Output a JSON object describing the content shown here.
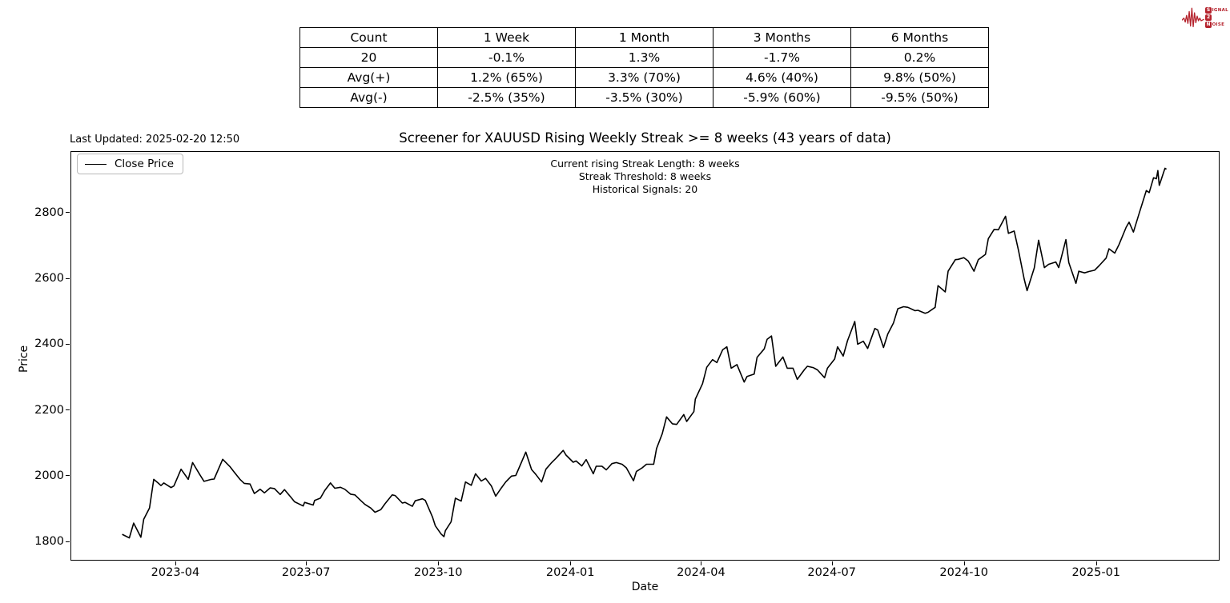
{
  "logo": {
    "signal_initial": "S",
    "signal_rest": "IGNAL",
    "middle": "2",
    "noise_initial": "N",
    "noise_rest": "OISE",
    "color": "#b5232d"
  },
  "last_updated": "Last Updated: 2025-02-20 12:50",
  "title": "Screener for XAUUSD Rising Weekly Streak >= 8 weeks (43 years of data)",
  "annotations": [
    "Current rising Streak Length: 8 weeks",
    "Streak Threshold: 8 weeks",
    "Historical Signals: 20"
  ],
  "legend": {
    "label": "Close Price"
  },
  "stats_table": {
    "headers": [
      "Count",
      "1 Week",
      "1 Month",
      "3 Months",
      "6 Months"
    ],
    "rows": [
      [
        "20",
        "-0.1%",
        "1.3%",
        "-1.7%",
        "0.2%"
      ],
      [
        "Avg(+)",
        "1.2% (65%)",
        "3.3% (70%)",
        "4.6% (40%)",
        "9.8% (50%)"
      ],
      [
        "Avg(-)",
        "-2.5% (35%)",
        "-3.5% (30%)",
        "-5.9% (60%)",
        "-9.5% (50%)"
      ]
    ]
  },
  "chart_data": {
    "type": "line",
    "title": "Screener for XAUUSD Rising Weekly Streak >= 8 weeks (43 years of data)",
    "xlabel": "Date",
    "ylabel": "Price",
    "grid": false,
    "legend_position": "upper left",
    "line_color": "#000000",
    "x_ticks": [
      "2023-04",
      "2023-07",
      "2023-10",
      "2024-01",
      "2024-04",
      "2024-07",
      "2024-10",
      "2025-01"
    ],
    "y_ticks": [
      1800,
      2000,
      2200,
      2400,
      2600,
      2800
    ],
    "x_domain": [
      "2023-01-18",
      "2025-03-28"
    ],
    "y_domain": [
      1742,
      2987
    ],
    "series": [
      {
        "name": "Close Price",
        "points": [
          [
            "2023-02-23",
            1822
          ],
          [
            "2023-02-28",
            1811
          ],
          [
            "2023-03-03",
            1856
          ],
          [
            "2023-03-08",
            1813
          ],
          [
            "2023-03-10",
            1868
          ],
          [
            "2023-03-14",
            1902
          ],
          [
            "2023-03-17",
            1989
          ],
          [
            "2023-03-20",
            1978
          ],
          [
            "2023-03-22",
            1970
          ],
          [
            "2023-03-24",
            1978
          ],
          [
            "2023-03-29",
            1964
          ],
          [
            "2023-03-31",
            1969
          ],
          [
            "2023-04-05",
            2020
          ],
          [
            "2023-04-10",
            1989
          ],
          [
            "2023-04-13",
            2040
          ],
          [
            "2023-04-18",
            2004
          ],
          [
            "2023-04-21",
            1983
          ],
          [
            "2023-04-26",
            1989
          ],
          [
            "2023-04-28",
            1990
          ],
          [
            "2023-05-04",
            2050
          ],
          [
            "2023-05-09",
            2028
          ],
          [
            "2023-05-12",
            2011
          ],
          [
            "2023-05-16",
            1989
          ],
          [
            "2023-05-19",
            1977
          ],
          [
            "2023-05-23",
            1975
          ],
          [
            "2023-05-26",
            1946
          ],
          [
            "2023-05-30",
            1959
          ],
          [
            "2023-06-02",
            1948
          ],
          [
            "2023-06-06",
            1963
          ],
          [
            "2023-06-09",
            1961
          ],
          [
            "2023-06-13",
            1943
          ],
          [
            "2023-06-16",
            1958
          ],
          [
            "2023-06-21",
            1932
          ],
          [
            "2023-06-23",
            1921
          ],
          [
            "2023-06-29",
            1908
          ],
          [
            "2023-06-30",
            1919
          ],
          [
            "2023-07-06",
            1911
          ],
          [
            "2023-07-07",
            1925
          ],
          [
            "2023-07-11",
            1932
          ],
          [
            "2023-07-14",
            1955
          ],
          [
            "2023-07-18",
            1978
          ],
          [
            "2023-07-21",
            1962
          ],
          [
            "2023-07-25",
            1965
          ],
          [
            "2023-07-28",
            1959
          ],
          [
            "2023-08-01",
            1944
          ],
          [
            "2023-08-04",
            1942
          ],
          [
            "2023-08-08",
            1925
          ],
          [
            "2023-08-11",
            1913
          ],
          [
            "2023-08-15",
            1902
          ],
          [
            "2023-08-18",
            1889
          ],
          [
            "2023-08-22",
            1897
          ],
          [
            "2023-08-25",
            1915
          ],
          [
            "2023-08-30",
            1942
          ],
          [
            "2023-09-01",
            1940
          ],
          [
            "2023-09-06",
            1917
          ],
          [
            "2023-09-08",
            1919
          ],
          [
            "2023-09-13",
            1907
          ],
          [
            "2023-09-15",
            1924
          ],
          [
            "2023-09-20",
            1930
          ],
          [
            "2023-09-22",
            1925
          ],
          [
            "2023-09-27",
            1875
          ],
          [
            "2023-09-29",
            1848
          ],
          [
            "2023-10-03",
            1823
          ],
          [
            "2023-10-05",
            1815
          ],
          [
            "2023-10-06",
            1833
          ],
          [
            "2023-10-10",
            1860
          ],
          [
            "2023-10-13",
            1932
          ],
          [
            "2023-10-17",
            1923
          ],
          [
            "2023-10-20",
            1981
          ],
          [
            "2023-10-24",
            1971
          ],
          [
            "2023-10-27",
            2006
          ],
          [
            "2023-10-31",
            1984
          ],
          [
            "2023-11-03",
            1992
          ],
          [
            "2023-11-07",
            1969
          ],
          [
            "2023-11-10",
            1938
          ],
          [
            "2023-11-14",
            1963
          ],
          [
            "2023-11-17",
            1981
          ],
          [
            "2023-11-21",
            1999
          ],
          [
            "2023-11-24",
            2001
          ],
          [
            "2023-11-28",
            2041
          ],
          [
            "2023-12-01",
            2072
          ],
          [
            "2023-12-05",
            2019
          ],
          [
            "2023-12-08",
            2004
          ],
          [
            "2023-12-12",
            1981
          ],
          [
            "2023-12-15",
            2020
          ],
          [
            "2023-12-19",
            2040
          ],
          [
            "2023-12-22",
            2053
          ],
          [
            "2023-12-27",
            2077
          ],
          [
            "2023-12-29",
            2063
          ],
          [
            "2024-01-03",
            2041
          ],
          [
            "2024-01-05",
            2045
          ],
          [
            "2024-01-09",
            2030
          ],
          [
            "2024-01-12",
            2049
          ],
          [
            "2024-01-17",
            2006
          ],
          [
            "2024-01-19",
            2029
          ],
          [
            "2024-01-23",
            2029
          ],
          [
            "2024-01-26",
            2018
          ],
          [
            "2024-01-30",
            2037
          ],
          [
            "2024-02-02",
            2040
          ],
          [
            "2024-02-06",
            2035
          ],
          [
            "2024-02-09",
            2024
          ],
          [
            "2024-02-14",
            1985
          ],
          [
            "2024-02-16",
            2013
          ],
          [
            "2024-02-20",
            2024
          ],
          [
            "2024-02-23",
            2035
          ],
          [
            "2024-02-28",
            2035
          ],
          [
            "2024-03-01",
            2083
          ],
          [
            "2024-03-05",
            2128
          ],
          [
            "2024-03-08",
            2179
          ],
          [
            "2024-03-12",
            2158
          ],
          [
            "2024-03-15",
            2156
          ],
          [
            "2024-03-20",
            2186
          ],
          [
            "2024-03-22",
            2165
          ],
          [
            "2024-03-27",
            2195
          ],
          [
            "2024-03-28",
            2233
          ],
          [
            "2024-04-02",
            2280
          ],
          [
            "2024-04-05",
            2330
          ],
          [
            "2024-04-09",
            2353
          ],
          [
            "2024-04-12",
            2344
          ],
          [
            "2024-04-16",
            2383
          ],
          [
            "2024-04-19",
            2392
          ],
          [
            "2024-04-22",
            2327
          ],
          [
            "2024-04-26",
            2338
          ],
          [
            "2024-05-01",
            2285
          ],
          [
            "2024-05-03",
            2302
          ],
          [
            "2024-05-08",
            2309
          ],
          [
            "2024-05-10",
            2360
          ],
          [
            "2024-05-15",
            2386
          ],
          [
            "2024-05-17",
            2415
          ],
          [
            "2024-05-20",
            2425
          ],
          [
            "2024-05-23",
            2333
          ],
          [
            "2024-05-28",
            2361
          ],
          [
            "2024-05-31",
            2327
          ],
          [
            "2024-06-04",
            2327
          ],
          [
            "2024-06-07",
            2293
          ],
          [
            "2024-06-12",
            2323
          ],
          [
            "2024-06-14",
            2333
          ],
          [
            "2024-06-18",
            2329
          ],
          [
            "2024-06-21",
            2322
          ],
          [
            "2024-06-26",
            2298
          ],
          [
            "2024-06-28",
            2327
          ],
          [
            "2024-07-03",
            2355
          ],
          [
            "2024-07-05",
            2392
          ],
          [
            "2024-07-09",
            2364
          ],
          [
            "2024-07-12",
            2411
          ],
          [
            "2024-07-17",
            2469
          ],
          [
            "2024-07-19",
            2400
          ],
          [
            "2024-07-23",
            2409
          ],
          [
            "2024-07-26",
            2387
          ],
          [
            "2024-07-31",
            2448
          ],
          [
            "2024-08-02",
            2443
          ],
          [
            "2024-08-06",
            2390
          ],
          [
            "2024-08-09",
            2431
          ],
          [
            "2024-08-13",
            2465
          ],
          [
            "2024-08-16",
            2508
          ],
          [
            "2024-08-20",
            2514
          ],
          [
            "2024-08-23",
            2512
          ],
          [
            "2024-08-28",
            2502
          ],
          [
            "2024-08-30",
            2503
          ],
          [
            "2024-09-04",
            2494
          ],
          [
            "2024-09-06",
            2497
          ],
          [
            "2024-09-11",
            2512
          ],
          [
            "2024-09-13",
            2578
          ],
          [
            "2024-09-18",
            2559
          ],
          [
            "2024-09-20",
            2622
          ],
          [
            "2024-09-25",
            2657
          ],
          [
            "2024-09-27",
            2658
          ],
          [
            "2024-10-01",
            2663
          ],
          [
            "2024-10-04",
            2653
          ],
          [
            "2024-10-08",
            2622
          ],
          [
            "2024-10-11",
            2657
          ],
          [
            "2024-10-16",
            2673
          ],
          [
            "2024-10-18",
            2721
          ],
          [
            "2024-10-22",
            2749
          ],
          [
            "2024-10-25",
            2748
          ],
          [
            "2024-10-30",
            2789
          ],
          [
            "2024-11-01",
            2737
          ],
          [
            "2024-11-05",
            2744
          ],
          [
            "2024-11-08",
            2685
          ],
          [
            "2024-11-12",
            2598
          ],
          [
            "2024-11-14",
            2563
          ],
          [
            "2024-11-19",
            2632
          ],
          [
            "2024-11-22",
            2716
          ],
          [
            "2024-11-26",
            2633
          ],
          [
            "2024-11-29",
            2643
          ],
          [
            "2024-12-04",
            2650
          ],
          [
            "2024-12-06",
            2633
          ],
          [
            "2024-12-11",
            2718
          ],
          [
            "2024-12-13",
            2648
          ],
          [
            "2024-12-18",
            2585
          ],
          [
            "2024-12-20",
            2622
          ],
          [
            "2024-12-24",
            2617
          ],
          [
            "2024-12-27",
            2621
          ],
          [
            "2024-12-31",
            2625
          ],
          [
            "2025-01-03",
            2638
          ],
          [
            "2025-01-08",
            2662
          ],
          [
            "2025-01-10",
            2690
          ],
          [
            "2025-01-14",
            2677
          ],
          [
            "2025-01-17",
            2703
          ],
          [
            "2025-01-22",
            2756
          ],
          [
            "2025-01-24",
            2771
          ],
          [
            "2025-01-27",
            2741
          ],
          [
            "2025-01-31",
            2798
          ],
          [
            "2025-02-05",
            2867
          ],
          [
            "2025-02-07",
            2861
          ],
          [
            "2025-02-10",
            2906
          ],
          [
            "2025-02-12",
            2903
          ],
          [
            "2025-02-13",
            2928
          ],
          [
            "2025-02-14",
            2883
          ],
          [
            "2025-02-18",
            2935
          ],
          [
            "2025-02-19",
            2932
          ]
        ]
      }
    ]
  }
}
